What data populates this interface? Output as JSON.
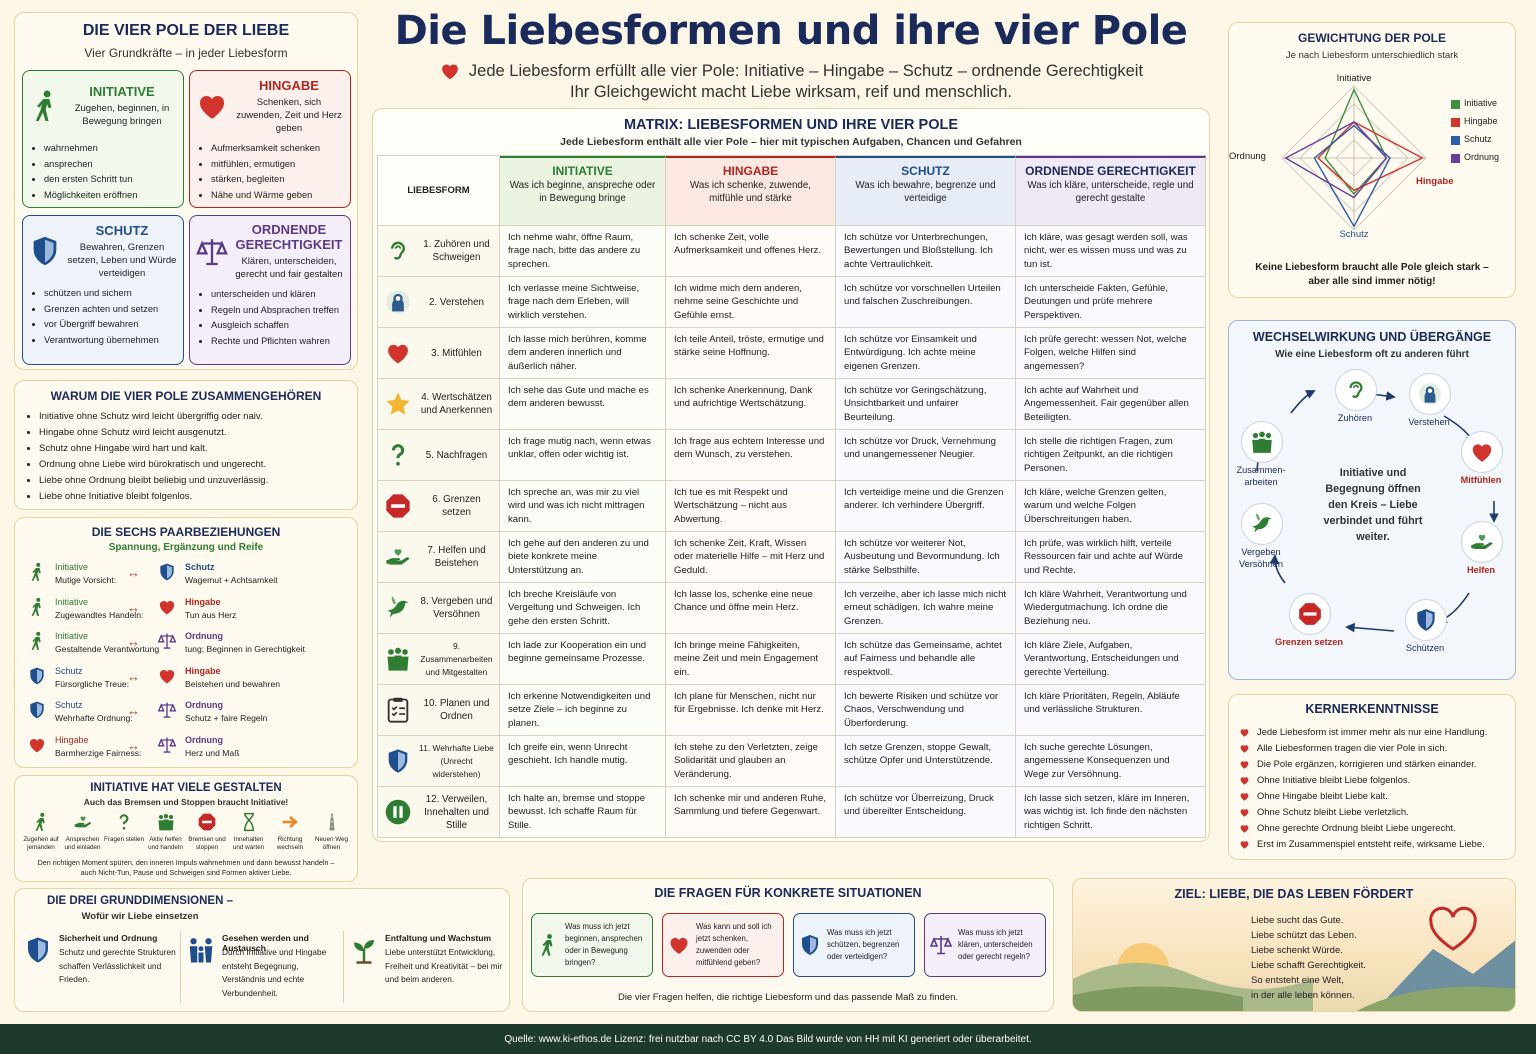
{
  "header": {
    "title": "Die Liebesformen und ihre vier Pole",
    "subtitle_1": "Jede Liebesform erfüllt alle vier Pole: Initiative – Hingabe – Schutz – ordnende Gerechtigkeit",
    "subtitle_2": "Ihr Gleichgewicht macht Liebe wirksam, reif und menschlich."
  },
  "pole_box": {
    "title": "DIE VIER POLE DER LIEBE",
    "subtitle": "Vier Grundkräfte – in jeder Liebesform",
    "poles": [
      {
        "name": "INITIATIVE",
        "desc": "Zugehen, beginnen, in Bewegung bringen",
        "items": [
          "wahrnehmen",
          "ansprechen",
          "den ersten Schritt tun",
          "Möglichkeiten eröffnen"
        ]
      },
      {
        "name": "HINGABE",
        "desc": "Schenken, sich zuwenden, Zeit und Herz geben",
        "items": [
          "Aufmerksamkeit schenken",
          "mitfühlen, ermutigen",
          "stärken, begleiten",
          "Nähe und Wärme geben"
        ]
      },
      {
        "name": "SCHUTZ",
        "desc": "Bewahren, Grenzen setzen, Leben und Würde verteidigen",
        "items": [
          "schützen und sichern",
          "Grenzen achten und setzen",
          "vor Übergriff bewahren",
          "Verantwortung übernehmen"
        ]
      },
      {
        "name": "ORDNENDE GERECHTIGKEIT",
        "desc": "Klären, unterscheiden, gerecht und fair gestalten",
        "items": [
          "unterscheiden und klären",
          "Regeln und Absprachen treffen",
          "Ausgleich schaffen",
          "Rechte und Pflichten wahren"
        ]
      }
    ]
  },
  "why": {
    "title": "WARUM DIE VIER POLE ZUSAMMENGEHÖREN",
    "items": [
      "Initiative ohne Schutz wird leicht übergriffig oder naiv.",
      "Hingabe ohne Schutz wird leicht ausgenutzt.",
      "Schutz ohne Hingabe wird hart und kalt.",
      "Ordnung ohne Liebe wird bürokratisch und ungerecht.",
      "Liebe ohne Ordnung bleibt beliebig und unzuverlässig.",
      "Liebe ohne Initiative bleibt folgenlos."
    ]
  },
  "pairs": {
    "title": "DIE SECHS PAARBEZIEHUNGEN",
    "subtitle": "Spannung, Ergänzung und Reife",
    "arrow": "↔",
    "rows": [
      {
        "a": "Initiative",
        "a_text": "Mutige Vorsicht:",
        "b": "Schutz",
        "b_text": "Wagemut + Achtsamkeit"
      },
      {
        "a": "Initiative",
        "a_text": "Zugewandtes Handeln:",
        "b": "Hingabe",
        "b_text": "Tun aus Herz"
      },
      {
        "a": "Initiative",
        "a_text": "Gestaltende Verantwortung",
        "b": "Ordnung",
        "b_text": "tung; Beginnen in Gerechtigkeit"
      },
      {
        "a": "Schutz",
        "a_text": "Fürsorgliche Treue:",
        "b": "Hingabe",
        "b_text": "Beistehen und bewahren"
      },
      {
        "a": "Schutz",
        "a_text": "Wehrhafte Ordnung:",
        "b": "Ordnung",
        "b_text": "Schutz + faire Regeln"
      },
      {
        "a": "Hingabe",
        "a_text": "Barmherzige Fairness:",
        "b": "Ordnung",
        "b_text": "Herz und Maß"
      }
    ]
  },
  "forms": {
    "title": "INITIATIVE HAT VIELE GESTALTEN",
    "subtitle": "Auch das Bremsen und Stoppen braucht Initiative!",
    "items": [
      "Zugehen auf jemanden",
      "Ansprechen und einladen",
      "Fragen stellen",
      "Aktiv helfen und handeln",
      "Bremsen und stoppen",
      "Innehalten und warten",
      "Richtung wechseln",
      "Neuen Weg öffnen"
    ],
    "note": "Den richtigen Moment spüren, den inneren Impuls wahrnehmen und dann bewusst handeln – auch Nicht-Tun, Pause und Schweigen sind Formen aktiver Liebe."
  },
  "dims": {
    "title": "DIE DREI GRUNDDIMENSIONEN –",
    "subtitle": "Wofür wir Liebe einsetzen",
    "items": [
      {
        "title": "Sicherheit und Ordnung",
        "text": "Schutz und gerechte Strukturen schaffen Verlässlichkeit und Frieden."
      },
      {
        "title": "Gesehen werden und Austausch",
        "text": "Durch Initiative und Hingabe entsteht Begegnung, Verständnis und echte Verbundenheit."
      },
      {
        "title": "Entfaltung und Wachstum",
        "text": "Liebe unterstützt Entwicklung, Freiheit und Kreativität – bei mir und beim anderen."
      }
    ]
  },
  "matrix": {
    "title": "MATRIX: LIEBESFORMEN UND IHRE VIER POLE",
    "subtitle": "Jede Liebesform enthält alle vier Pole – hier mit typischen Aufgaben, Chancen und Gefahren",
    "corner": "LIEBESFORM",
    "columns": [
      {
        "name": "INITIATIVE",
        "desc": "Was ich beginne, anspreche oder in Bewegung bringe"
      },
      {
        "name": "HINGABE",
        "desc": "Was ich schenke, zuwende, mitfühle und stärke"
      },
      {
        "name": "SCHUTZ",
        "desc": "Was ich bewahre, begrenze und verteidige"
      },
      {
        "name": "ORDNENDE GERECHTIGKEIT",
        "desc": "Was ich kläre, unterscheide, regle und gerecht gestalte"
      }
    ],
    "rows": [
      {
        "label": "1. Zuhören und Schweigen",
        "cells": [
          "Ich nehme wahr, öffne Raum, frage nach, bitte das andere zu sprechen.",
          "Ich schenke Zeit, volle Aufmerksamkeit und offenes Herz.",
          "Ich schütze vor Unterbrechungen, Bewertungen und Bloßstellung. Ich achte Vertraulichkeit.",
          "Ich kläre, was gesagt werden soll, was nicht, wer es wissen muss und was zu tun ist."
        ]
      },
      {
        "label": "2. Verstehen",
        "cells": [
          "Ich verlasse meine Sichtweise, frage nach dem Erleben, will wirklich verstehen.",
          "Ich widme mich dem anderen, nehme seine Geschichte und Gefühle ernst.",
          "Ich schütze vor vorschnellen Urteilen und falschen Zuschreibungen.",
          "Ich unterscheide Fakten, Gefühle, Deutungen und prüfe mehrere Perspektiven."
        ]
      },
      {
        "label": "3. Mitfühlen",
        "cells": [
          "Ich lasse mich berühren, komme dem anderen innerlich und äußerlich näher.",
          "Ich teile Anteil, tröste, ermutige und stärke seine Hoffnung.",
          "Ich schütze vor Einsamkeit und Entwürdigung. Ich achte meine eigenen Grenzen.",
          "Ich prüfe gerecht: wessen Not, welche Folgen, welche Hilfen sind angemessen?"
        ]
      },
      {
        "label": "4. Wertschätzen und Anerkennen",
        "cells": [
          "Ich sehe das Gute und mache es dem anderen bewusst.",
          "Ich schenke Anerkennung, Dank und aufrichtige Wertschätzung.",
          "Ich schütze vor Geringschätzung, Unsichtbarkeit und unfairer Beurteilung.",
          "Ich achte auf Wahrheit und Angemessenheit. Fair gegenüber allen Beteiligten."
        ]
      },
      {
        "label": "5. Nachfragen",
        "cells": [
          "Ich frage mutig nach, wenn etwas unklar, offen oder wichtig ist.",
          "Ich frage aus echtem Interesse und dem Wunsch, zu verstehen.",
          "Ich schütze vor Druck, Vernehmung und unangemessener Neugier.",
          "Ich stelle die richtigen Fragen, zum richtigen Zeitpunkt, an die richtigen Personen."
        ]
      },
      {
        "label": "6. Grenzen setzen",
        "cells": [
          "Ich spreche an, was mir zu viel wird und was ich nicht mittragen kann.",
          "Ich tue es mit Respekt und Wertschätzung – nicht aus Abwertung.",
          "Ich verteidige meine und die Grenzen anderer. Ich verhindere Übergriff.",
          "Ich kläre, welche Grenzen gelten, warum und welche Folgen Überschreitungen haben."
        ]
      },
      {
        "label": "7. Helfen und Beistehen",
        "cells": [
          "Ich gehe auf den anderen zu und biete konkrete meine Unterstützung an.",
          "Ich schenke Zeit, Kraft, Wissen oder materielle Hilfe – mit Herz und Geduld.",
          "Ich schütze vor weiterer Not, Ausbeutung und Bevormundung. Ich stärke Selbsthilfe.",
          "Ich prüfe, was wirklich hilft, verteile Ressourcen fair und achte auf Würde und Rechte."
        ]
      },
      {
        "label": "8. Vergeben und Versöhnen",
        "cells": [
          "Ich breche Kreisläufe von Vergeltung und Schweigen. Ich gehe den ersten Schritt.",
          "Ich lasse los, schenke eine neue Chance und öffne mein Herz.",
          "Ich verzeihe, aber ich lasse mich nicht erneut schädigen. Ich wahre meine Grenzen.",
          "Ich kläre Wahrheit, Verantwortung und Wiedergutmachung. Ich ordne die Beziehung neu."
        ]
      },
      {
        "label": "9. Zusammenarbeiten und Mitgestalten",
        "cells": [
          "Ich lade zur Kooperation ein und beginne gemeinsame Prozesse.",
          "Ich bringe meine Fähigkeiten, meine Zeit und mein Engagement ein.",
          "Ich schütze das Gemeinsame, achtet auf Fairness und behandle alle respektvoll.",
          "Ich kläre Ziele, Aufgaben, Verantwortung, Entscheidungen und gerechte Verteilung."
        ]
      },
      {
        "label": "10. Planen und Ordnen",
        "cells": [
          "Ich erkenne Notwendigkeiten und setze Ziele – ich beginne zu planen.",
          "Ich plane für Menschen, nicht nur für Ergebnisse. Ich denke mit Herz.",
          "Ich bewerte Risiken und schütze vor Chaos, Verschwendung und Überforderung.",
          "Ich kläre Prioritäten, Regeln, Abläufe und verlässliche Strukturen."
        ]
      },
      {
        "label": "11. Wehrhafte Liebe (Unrecht widerstehen)",
        "cells": [
          "Ich greife ein, wenn Unrecht geschieht. Ich handle mutig.",
          "Ich stehe zu den Verletzten, zeige Solidarität und glauben an Veränderung.",
          "Ich setze Grenzen, stoppe Gewalt, schütze Opfer und Unterstützende.",
          "Ich suche gerechte Lösungen, angemessene Konsequenzen und Wege zur Versöhnung."
        ]
      },
      {
        "label": "12. Verweilen, Innehalten und Stille",
        "cells": [
          "Ich halte an, bremse und stoppe bewusst. Ich schaffe Raum für Stille.",
          "Ich schenke mir und anderen Ruhe, Sammlung und tiefere Gegenwart.",
          "Ich schütze vor Überreizung, Druck und übereilter Entscheidung.",
          "Ich lasse sich setzen, kläre im Inneren, was wichtig ist. Ich finde den nächsten richtigen Schritt."
        ]
      }
    ]
  },
  "questions": {
    "title": "DIE FRAGEN FÜR KONKRETE SITUATIONEN",
    "items": [
      "Was muss ich jetzt beginnen, ansprechen oder in Bewegung bringen?",
      "Was kann und soll ich jetzt schenken, zuwenden oder mitfühlend geben?",
      "Was muss ich jetzt schützen, begrenzen oder verteidigen?",
      "Was muss ich jetzt klären, unterscheiden oder gerecht regeln?"
    ],
    "note": "Die vier Fragen helfen, die richtige Liebesform und das passende Maß zu finden."
  },
  "weights": {
    "title": "GEWICHTUNG DER POLE",
    "subtitle": "Je nach Liebesform unterschiedlich stark",
    "axes": [
      "Initiative",
      "Hingabe",
      "Schutz",
      "Ordnung"
    ],
    "legend": [
      "Initiative",
      "Hingabe",
      "Schutz",
      "Ordnung"
    ],
    "note": "Keine Liebesform braucht alle Pole gleich stark – aber alle sind immer nötig!"
  },
  "cycle": {
    "title": "WECHSELWIRKUNG UND ÜBERGÄNGE",
    "subtitle": "Wie eine Liebesform oft zu anderen führt",
    "steps": [
      "Zuhören",
      "Verstehen",
      "Mitfühlen",
      "Helfen",
      "Schützen",
      "Grenzen setzen",
      "Vergeben Versöhnen",
      "Zusammen-arbeiten"
    ],
    "center": "Initiative und Begegnung öffnen den Kreis – Liebe verbindet und führt weiter."
  },
  "insights": {
    "title": "KERNERKENNTNISSE",
    "items": [
      "Jede Liebesform ist immer mehr als nur eine Handlung.",
      "Alle Liebesformen tragen die vier Pole in sich.",
      "Die Pole ergänzen, korrigieren und stärken einander.",
      "Ohne Initiative bleibt Liebe folgenlos.",
      "Ohne Hingabe bleibt Liebe kalt.",
      "Ohne Schutz bleibt Liebe verletzlich.",
      "Ohne gerechte Ordnung bleibt Liebe ungerecht.",
      "Erst im Zusammenspiel entsteht reife, wirksame Liebe."
    ]
  },
  "goal": {
    "title": "ZIEL: LIEBE, DIE DAS LEBEN FÖRDERT",
    "lines": [
      "Liebe sucht das Gute.",
      "Liebe schützt das Leben.",
      "Liebe schenkt Würde.",
      "Liebe schafft Gerechtigkeit.",
      "So entsteht eine Welt,",
      "in der alle leben können."
    ]
  },
  "footer": {
    "text": "Quelle: www.ki-ethos.de Lizenz: frei nutzbar nach CC BY 4.0 Das Bild wurde von HH mit KI generiert oder überarbeitet."
  }
}
